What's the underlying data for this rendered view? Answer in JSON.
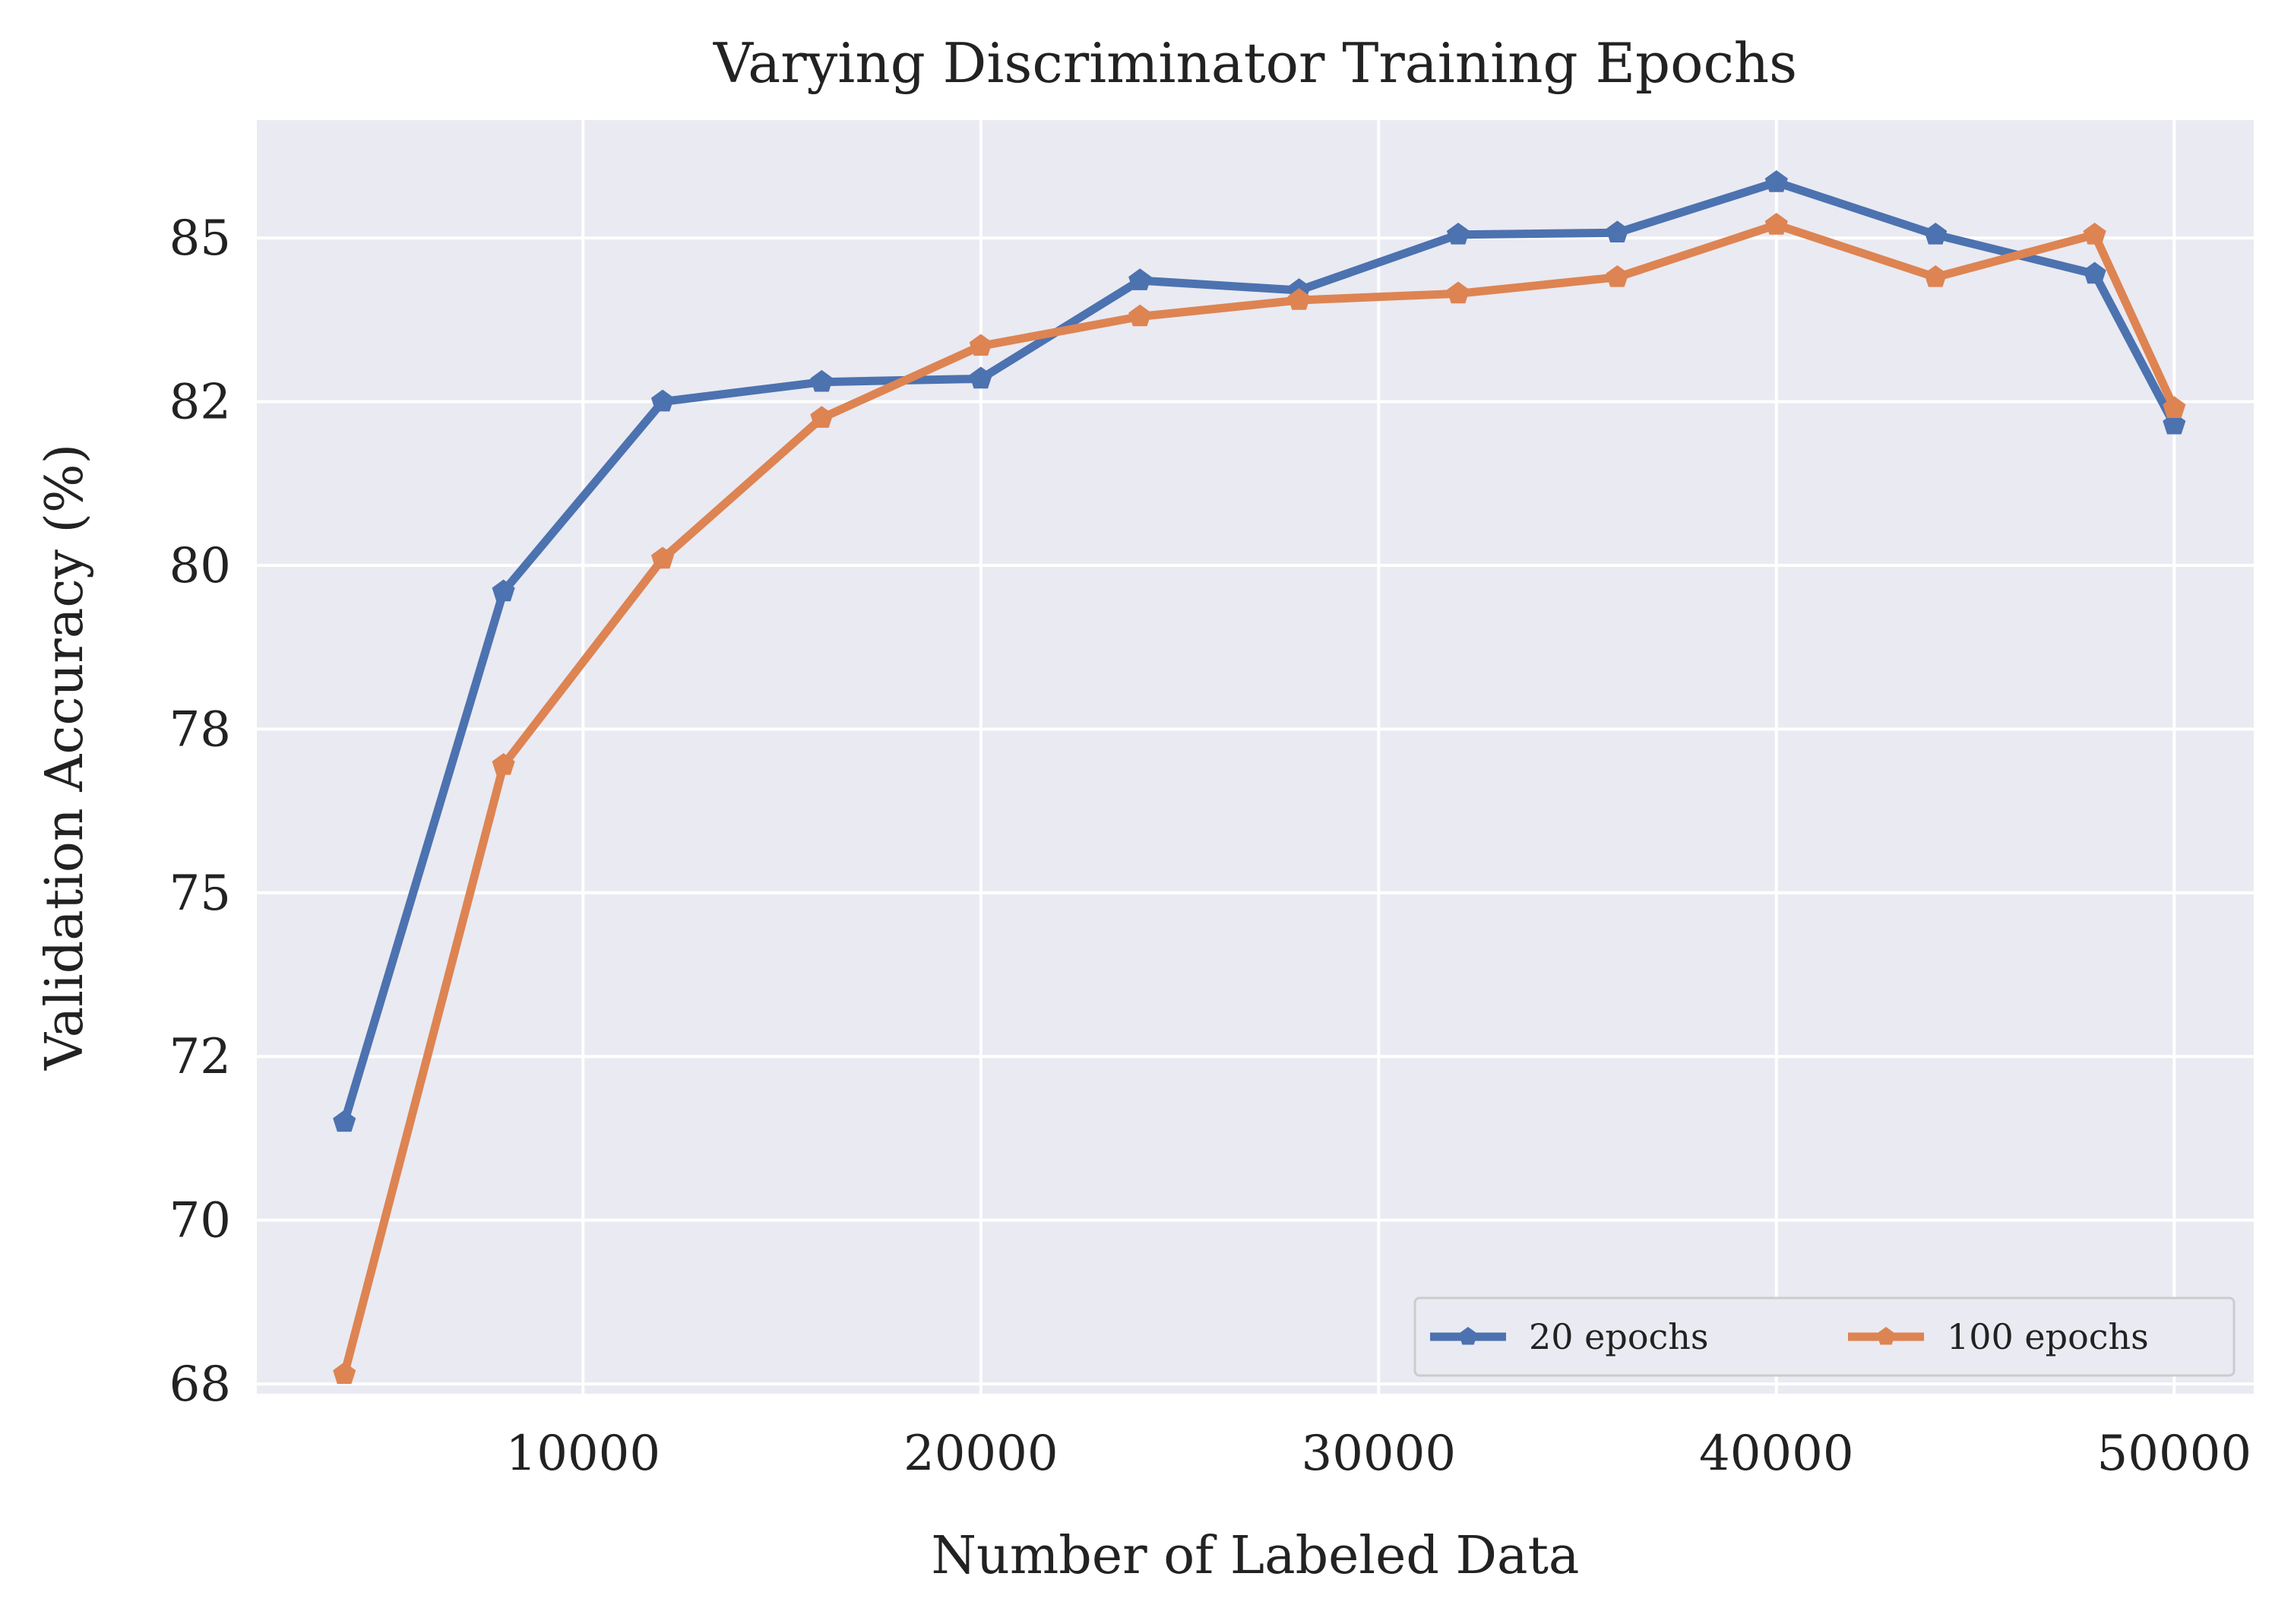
{
  "chart_data": {
    "type": "line",
    "title": "Varying Discriminator Training Epochs",
    "xlabel": "Number of Labeled Data",
    "ylabel": "Validation Accuracy (%)",
    "xlim": [
      1800,
      52000
    ],
    "ylim": [
      67.35,
      86.8
    ],
    "x_ticks": [
      10000,
      20000,
      30000,
      40000,
      50000
    ],
    "x_tick_labels": [
      "10000",
      "20000",
      "30000",
      "40000",
      "50000"
    ],
    "y_ticks": [
      67.5,
      70,
      72.5,
      75,
      77.5,
      80,
      82.5,
      85
    ],
    "y_tick_labels": [
      "68",
      "70",
      "72",
      "75",
      "78",
      "80",
      "82",
      "85"
    ],
    "grid": true,
    "legend_position": "lower-right",
    "x": [
      4000,
      8000,
      12000,
      16000,
      20000,
      24000,
      28000,
      32000,
      36000,
      40000,
      44000,
      48000,
      50000
    ],
    "series": [
      {
        "name": "20 epochs",
        "color": "#4c72b0",
        "values": [
          71.5,
          79.6,
          82.5,
          82.8,
          82.85,
          84.35,
          84.2,
          85.05,
          85.08,
          85.85,
          85.05,
          84.45,
          82.15
        ]
      },
      {
        "name": "100 epochs",
        "color": "#dd8452",
        "values": [
          67.65,
          76.95,
          80.1,
          82.25,
          83.35,
          83.8,
          84.05,
          84.15,
          84.4,
          85.2,
          84.4,
          85.05,
          82.4
        ]
      }
    ]
  }
}
